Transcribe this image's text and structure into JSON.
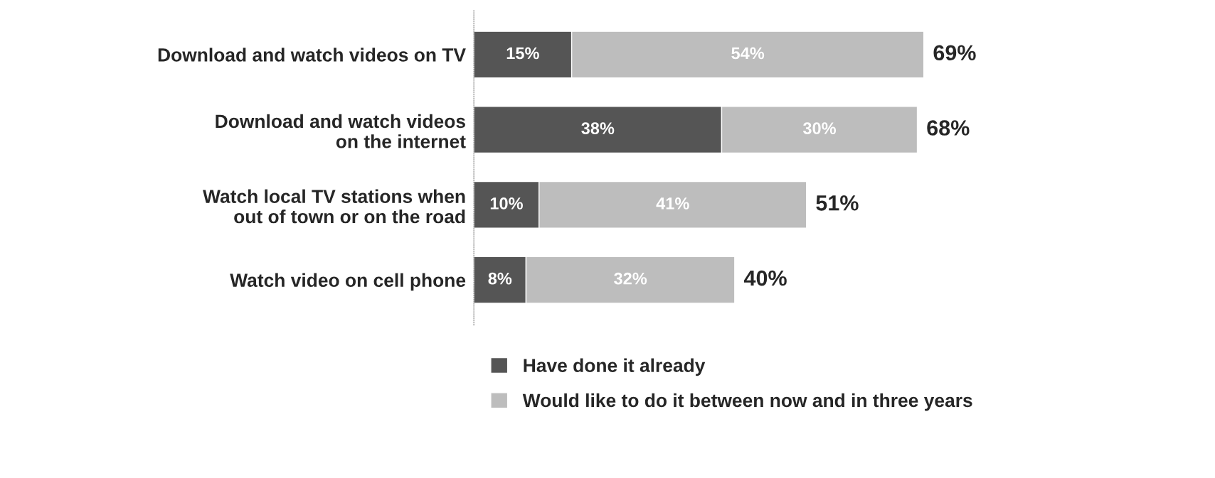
{
  "chart_data": {
    "type": "bar",
    "orientation": "horizontal",
    "stacked": true,
    "categories": [
      "Download and watch videos on TV",
      "Download and watch videos\non the internet",
      "Watch local TV stations when\nout of town or on the road",
      "Watch video on cell phone"
    ],
    "series": [
      {
        "name": "Have done it already",
        "color": "#555555",
        "values": [
          15,
          38,
          10,
          8
        ],
        "value_labels": [
          "15%",
          "38%",
          "10%",
          "8%"
        ]
      },
      {
        "name": "Would like to do it between now and in three years",
        "color": "#bdbdbd",
        "values": [
          54,
          30,
          41,
          32
        ],
        "value_labels": [
          "54%",
          "30%",
          "41%",
          "32%"
        ]
      }
    ],
    "totals": [
      "69%",
      "68%",
      "51%",
      "40%"
    ],
    "tick_labels": "y",
    "grid": false,
    "legend": "bottom"
  }
}
